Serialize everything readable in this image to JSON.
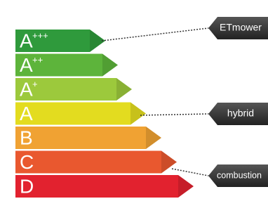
{
  "bands": [
    {
      "letter": "A",
      "sup": "+++"
    },
    {
      "letter": "A",
      "sup": "++"
    },
    {
      "letter": "A",
      "sup": "+"
    },
    {
      "letter": "A"
    },
    {
      "letter": "B"
    },
    {
      "letter": "C"
    },
    {
      "letter": "D"
    }
  ],
  "tags": [
    "ETmower",
    "hybrid",
    "combustion"
  ]
}
